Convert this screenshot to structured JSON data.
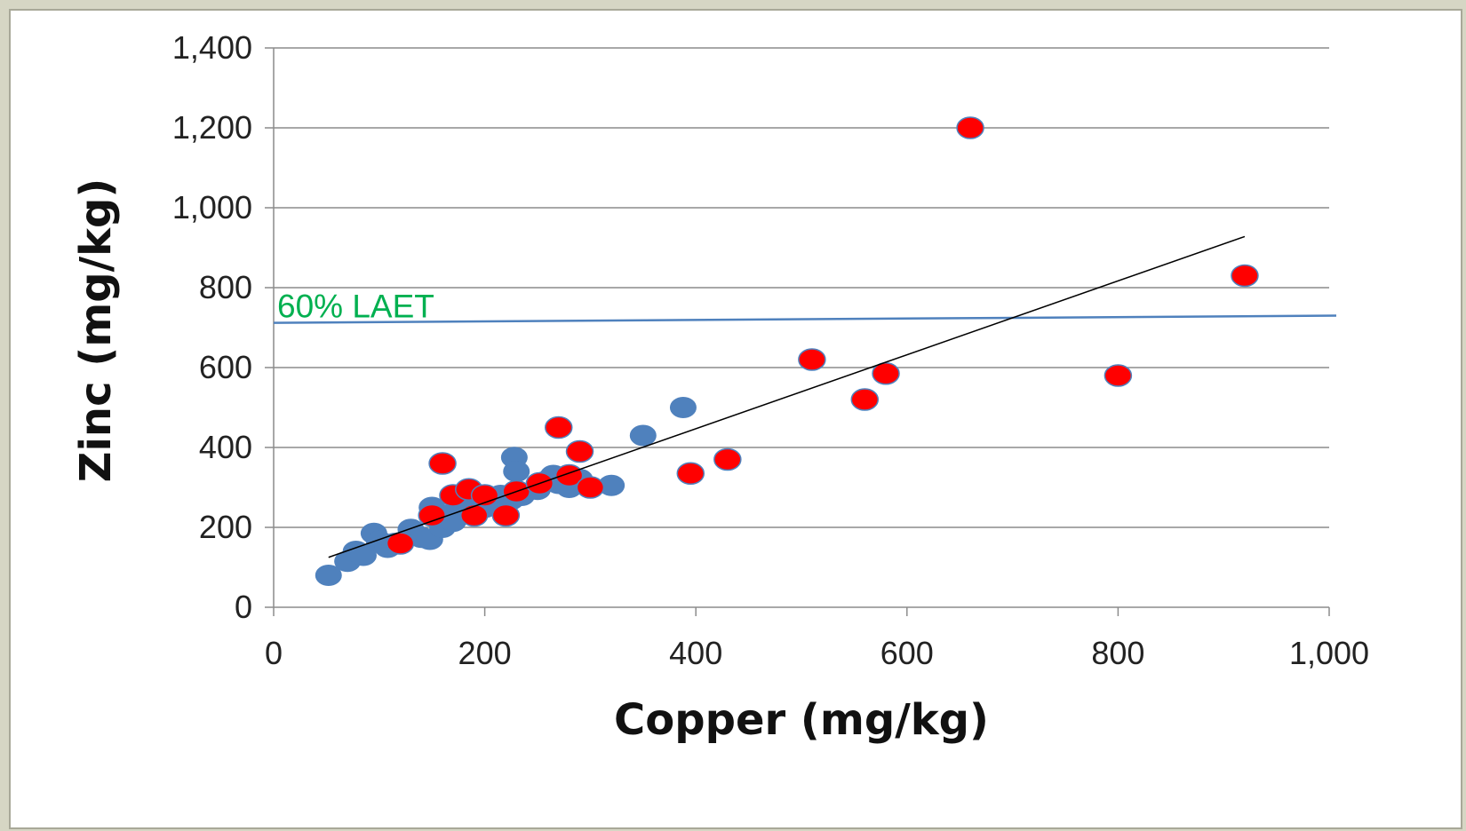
{
  "chart_data": {
    "type": "scatter",
    "title": "",
    "xlabel": "Copper (mg/kg)",
    "ylabel": "Zinc (mg/kg)",
    "xlim": [
      0,
      1000
    ],
    "ylim": [
      0,
      1400
    ],
    "x_ticks": [
      "0",
      "200",
      "400",
      "600",
      "800",
      "1,000"
    ],
    "y_ticks": [
      "0",
      "200",
      "400",
      "600",
      "800",
      "1,000",
      "1,200",
      "1,400"
    ],
    "grid": "horizontal",
    "legend": "none",
    "series": [
      {
        "color": "#4f81bd",
        "points": [
          [
            52,
            80
          ],
          [
            70,
            115
          ],
          [
            78,
            140
          ],
          [
            85,
            130
          ],
          [
            95,
            185
          ],
          [
            100,
            165
          ],
          [
            108,
            150
          ],
          [
            115,
            160
          ],
          [
            130,
            195
          ],
          [
            140,
            175
          ],
          [
            148,
            170
          ],
          [
            150,
            250
          ],
          [
            160,
            200
          ],
          [
            165,
            230
          ],
          [
            170,
            215
          ],
          [
            178,
            260
          ],
          [
            185,
            240
          ],
          [
            200,
            250
          ],
          [
            210,
            260
          ],
          [
            215,
            280
          ],
          [
            225,
            270
          ],
          [
            228,
            375
          ],
          [
            230,
            340
          ],
          [
            235,
            280
          ],
          [
            250,
            295
          ],
          [
            258,
            315
          ],
          [
            265,
            330
          ],
          [
            270,
            310
          ],
          [
            280,
            300
          ],
          [
            290,
            320
          ],
          [
            320,
            305
          ],
          [
            350,
            430
          ],
          [
            388,
            500
          ]
        ]
      },
      {
        "color": "#ff0000",
        "points": [
          [
            120,
            160
          ],
          [
            150,
            230
          ],
          [
            160,
            360
          ],
          [
            170,
            280
          ],
          [
            185,
            295
          ],
          [
            190,
            230
          ],
          [
            200,
            280
          ],
          [
            220,
            230
          ],
          [
            230,
            290
          ],
          [
            252,
            310
          ],
          [
            270,
            450
          ],
          [
            280,
            330
          ],
          [
            290,
            390
          ],
          [
            300,
            300
          ],
          [
            395,
            335
          ],
          [
            430,
            370
          ],
          [
            510,
            620
          ],
          [
            560,
            520
          ],
          [
            580,
            585
          ],
          [
            660,
            1200
          ],
          [
            800,
            580
          ],
          [
            920,
            830
          ]
        ]
      }
    ],
    "trendline": {
      "type": "linear",
      "color": "#000000",
      "x": [
        52,
        920
      ],
      "y": [
        125,
        928
      ]
    },
    "reference_line": {
      "label": "60% LAET",
      "label_color": "#00b050",
      "line_color": "#4f81bd",
      "y_start": 712,
      "y_end": 730
    }
  }
}
